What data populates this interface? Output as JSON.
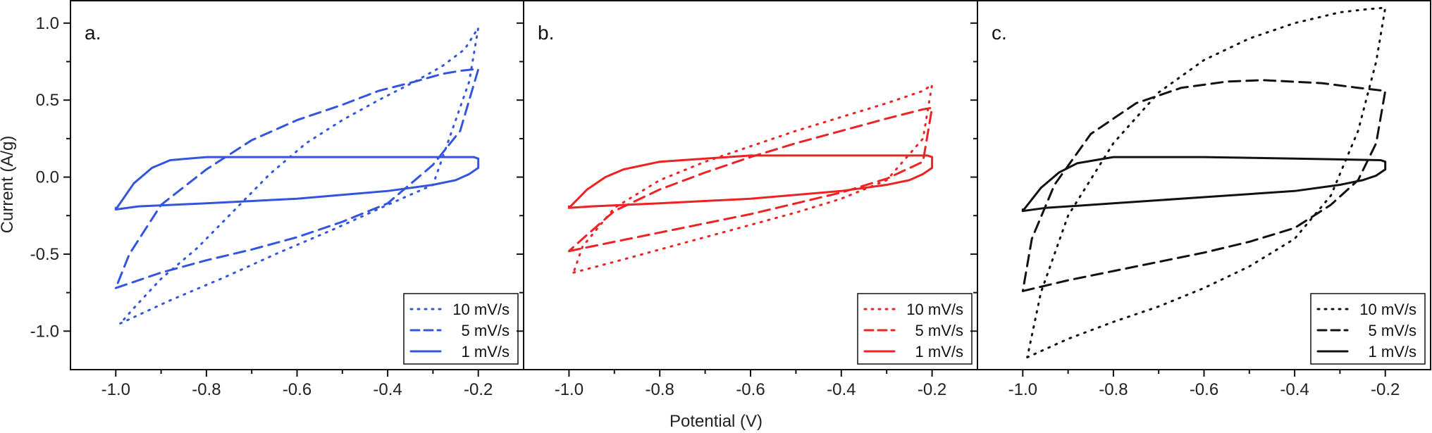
{
  "figure": {
    "xlabel": "Potential (V)",
    "ylabel": "Current (A/g)"
  },
  "chart_data": [
    {
      "type": "line",
      "panel_label": "a.",
      "color": "#3355dd",
      "xlim": [
        -1.1,
        -0.1
      ],
      "ylim": [
        -1.25,
        1.15
      ],
      "x_ticks": [
        -1.0,
        -0.8,
        -0.6,
        -0.4,
        -0.2
      ],
      "x_tick_labels": [
        "-1.0",
        "-0.8",
        "-0.6",
        "-0.4",
        "-0.2"
      ],
      "y_ticks": [
        -1.0,
        -0.5,
        0.0,
        0.5,
        1.0
      ],
      "y_tick_labels": [
        "-1.0",
        "-0.5",
        "0.0",
        "0.5",
        "1.0"
      ],
      "legend_position": "bottom-right",
      "series": [
        {
          "name": "10 mV/s",
          "style": "dotted",
          "x": [
            -0.99,
            -0.88,
            -0.76,
            -0.64,
            -0.52,
            -0.4,
            -0.3,
            -0.22,
            -0.2,
            -0.23,
            -0.28,
            -0.34,
            -0.42,
            -0.5,
            -0.58,
            -0.66,
            -0.74,
            -0.82,
            -0.9,
            -0.96,
            -0.99
          ],
          "y": [
            -0.95,
            -0.8,
            -0.65,
            -0.49,
            -0.34,
            -0.18,
            -0.05,
            0.62,
            0.97,
            0.83,
            0.72,
            0.62,
            0.5,
            0.37,
            0.22,
            0.02,
            -0.22,
            -0.46,
            -0.66,
            -0.85,
            -0.95
          ]
        },
        {
          "name": "5 mV/s",
          "style": "dashed",
          "x": [
            -1.0,
            -0.9,
            -0.8,
            -0.7,
            -0.6,
            -0.5,
            -0.4,
            -0.3,
            -0.24,
            -0.2,
            -0.21,
            -0.24,
            -0.28,
            -0.34,
            -0.42,
            -0.5,
            -0.6,
            -0.7,
            -0.8,
            -0.9,
            -0.97,
            -1.0
          ],
          "y": [
            -0.72,
            -0.62,
            -0.54,
            -0.47,
            -0.39,
            -0.29,
            -0.17,
            0.08,
            0.3,
            0.7,
            0.7,
            0.69,
            0.67,
            0.62,
            0.56,
            0.47,
            0.37,
            0.24,
            0.05,
            -0.18,
            -0.5,
            -0.72
          ]
        },
        {
          "name": "1 mV/s",
          "style": "solid",
          "x": [
            -1.0,
            -0.96,
            -0.92,
            -0.88,
            -0.8,
            -0.6,
            -0.4,
            -0.21,
            -0.2,
            -0.2,
            -0.22,
            -0.25,
            -0.3,
            -0.4,
            -0.6,
            -0.8,
            -0.95,
            -1.0,
            -1.0
          ],
          "y": [
            -0.21,
            -0.04,
            0.06,
            0.11,
            0.13,
            0.13,
            0.13,
            0.13,
            0.12,
            0.06,
            0.02,
            -0.02,
            -0.05,
            -0.09,
            -0.14,
            -0.17,
            -0.19,
            -0.21,
            -0.2
          ]
        }
      ]
    },
    {
      "type": "line",
      "panel_label": "b.",
      "color": "#ee2222",
      "xlim": [
        -1.1,
        -0.1
      ],
      "ylim": [
        -1.25,
        1.15
      ],
      "x_ticks": [
        -1.0,
        -0.8,
        -0.6,
        -0.4,
        -0.2
      ],
      "x_tick_labels": [
        "-1.0",
        "-0.8",
        "-0.6",
        "-0.4",
        "-0.2"
      ],
      "y_ticks": [
        -1.0,
        -0.5,
        0.0,
        0.5,
        1.0
      ],
      "y_tick_labels": [],
      "legend_position": "bottom-right",
      "series": [
        {
          "name": "10 mV/s",
          "style": "dotted",
          "x": [
            -0.99,
            -0.9,
            -0.8,
            -0.7,
            -0.6,
            -0.5,
            -0.4,
            -0.3,
            -0.22,
            -0.2,
            -0.22,
            -0.3,
            -0.4,
            -0.5,
            -0.6,
            -0.7,
            -0.8,
            -0.9,
            -0.97,
            -0.99
          ],
          "y": [
            -0.62,
            -0.55,
            -0.47,
            -0.39,
            -0.31,
            -0.23,
            -0.14,
            -0.02,
            0.25,
            0.6,
            0.56,
            0.48,
            0.39,
            0.3,
            0.2,
            0.1,
            -0.02,
            -0.2,
            -0.45,
            -0.62
          ]
        },
        {
          "name": "5 mV/s",
          "style": "dashed",
          "x": [
            -1.0,
            -0.9,
            -0.8,
            -0.7,
            -0.6,
            -0.5,
            -0.4,
            -0.3,
            -0.22,
            -0.2,
            -0.22,
            -0.3,
            -0.4,
            -0.5,
            -0.6,
            -0.7,
            -0.8,
            -0.9,
            -0.97,
            -1.0
          ],
          "y": [
            -0.48,
            -0.42,
            -0.36,
            -0.3,
            -0.24,
            -0.17,
            -0.1,
            -0.01,
            0.1,
            0.45,
            0.44,
            0.38,
            0.3,
            0.22,
            0.13,
            0.03,
            -0.08,
            -0.22,
            -0.4,
            -0.48
          ]
        },
        {
          "name": "1 mV/s",
          "style": "solid",
          "x": [
            -1.0,
            -0.96,
            -0.92,
            -0.88,
            -0.8,
            -0.6,
            -0.4,
            -0.21,
            -0.2,
            -0.2,
            -0.22,
            -0.25,
            -0.3,
            -0.4,
            -0.6,
            -0.8,
            -0.95,
            -1.0,
            -1.0
          ],
          "y": [
            -0.2,
            -0.08,
            0.0,
            0.05,
            0.1,
            0.14,
            0.14,
            0.14,
            0.13,
            0.06,
            0.02,
            -0.02,
            -0.05,
            -0.09,
            -0.14,
            -0.17,
            -0.19,
            -0.2,
            -0.19
          ]
        }
      ]
    },
    {
      "type": "line",
      "panel_label": "c.",
      "color": "#111111",
      "xlim": [
        -1.1,
        -0.1
      ],
      "ylim": [
        -1.25,
        1.15
      ],
      "x_ticks": [
        -1.0,
        -0.8,
        -0.6,
        -0.4,
        -0.2
      ],
      "x_tick_labels": [
        "-1.0",
        "-0.8",
        "-0.6",
        "-0.4",
        "-0.2"
      ],
      "y_ticks": [
        -1.0,
        -0.5,
        0.0,
        0.5,
        1.0
      ],
      "y_tick_labels": [],
      "legend_position": "bottom-right",
      "series": [
        {
          "name": "10 mV/s",
          "style": "dotted",
          "x": [
            -0.99,
            -0.9,
            -0.8,
            -0.7,
            -0.6,
            -0.5,
            -0.4,
            -0.32,
            -0.26,
            -0.22,
            -0.2,
            -0.2,
            -0.24,
            -0.3,
            -0.4,
            -0.5,
            -0.6,
            -0.7,
            -0.8,
            -0.9,
            -0.96,
            -0.99
          ],
          "y": [
            -1.17,
            -1.05,
            -0.94,
            -0.84,
            -0.72,
            -0.58,
            -0.4,
            -0.12,
            0.3,
            0.75,
            1.1,
            1.1,
            1.09,
            1.07,
            1.0,
            0.9,
            0.76,
            0.55,
            0.22,
            -0.25,
            -0.75,
            -1.17
          ]
        },
        {
          "name": "5 mV/s",
          "style": "dashed",
          "x": [
            -1.0,
            -0.9,
            -0.8,
            -0.7,
            -0.6,
            -0.5,
            -0.4,
            -0.32,
            -0.26,
            -0.22,
            -0.2,
            -0.2,
            -0.26,
            -0.34,
            -0.47,
            -0.55,
            -0.65,
            -0.75,
            -0.85,
            -0.93,
            -0.98,
            -1.0
          ],
          "y": [
            -0.74,
            -0.67,
            -0.61,
            -0.55,
            -0.49,
            -0.42,
            -0.33,
            -0.18,
            -0.02,
            0.22,
            0.56,
            0.56,
            0.58,
            0.61,
            0.63,
            0.62,
            0.58,
            0.48,
            0.28,
            -0.05,
            -0.4,
            -0.74
          ]
        },
        {
          "name": "1 mV/s",
          "style": "solid",
          "x": [
            -1.0,
            -0.96,
            -0.92,
            -0.88,
            -0.8,
            -0.6,
            -0.4,
            -0.21,
            -0.2,
            -0.2,
            -0.22,
            -0.25,
            -0.3,
            -0.4,
            -0.6,
            -0.8,
            -0.95,
            -1.0,
            -1.0
          ],
          "y": [
            -0.22,
            -0.07,
            0.03,
            0.09,
            0.13,
            0.13,
            0.12,
            0.11,
            0.1,
            0.05,
            0.01,
            -0.02,
            -0.05,
            -0.09,
            -0.13,
            -0.17,
            -0.2,
            -0.22,
            -0.21
          ]
        }
      ]
    }
  ]
}
